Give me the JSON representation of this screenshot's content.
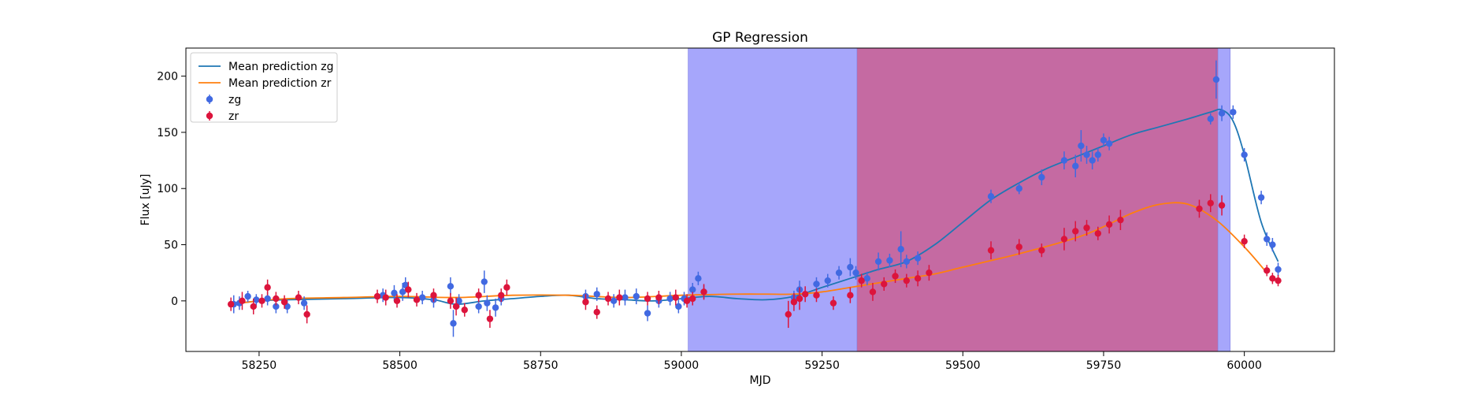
{
  "chart_data": {
    "type": "scatter",
    "title": "GP Regression",
    "xlabel": "MJD",
    "ylabel": "Flux [uJy]",
    "xlim": [
      58120,
      60160
    ],
    "ylim": [
      -45,
      225
    ],
    "xticks": [
      58250,
      58500,
      58750,
      59000,
      59250,
      59500,
      59750,
      60000
    ],
    "yticks": [
      0,
      50,
      100,
      150,
      200
    ],
    "grid": false,
    "legend_position": "top-left",
    "shaded_regions": [
      {
        "x0": 59012,
        "x1": 59975,
        "color": "#a6a6fb"
      },
      {
        "x0": 59312,
        "x1": 59953,
        "color": "#c56aa2"
      }
    ],
    "lines": [
      {
        "name": "Mean prediction zg",
        "color": "#1f77b4",
        "x": [
          58200,
          58250,
          58300,
          58400,
          58500,
          58560,
          58600,
          58650,
          58700,
          58750,
          58800,
          58850,
          58900,
          58950,
          59000,
          59050,
          59100,
          59150,
          59200,
          59250,
          59300,
          59350,
          59400,
          59450,
          59500,
          59550,
          59600,
          59650,
          59700,
          59750,
          59800,
          59850,
          59900,
          59940,
          59960,
          59980,
          60000,
          60030,
          60060
        ],
        "y": [
          -3,
          0,
          1,
          2,
          3,
          1,
          -3,
          0,
          2,
          4,
          5,
          2,
          1,
          0,
          2,
          4,
          2,
          1,
          4,
          12,
          20,
          28,
          35,
          50,
          70,
          90,
          105,
          118,
          128,
          138,
          148,
          155,
          162,
          168,
          170,
          160,
          130,
          70,
          35
        ]
      },
      {
        "name": "Mean prediction zr",
        "color": "#ff7f0e",
        "x": [
          58200,
          58250,
          58300,
          58400,
          58500,
          58600,
          58700,
          58800,
          58900,
          59000,
          59100,
          59150,
          59200,
          59250,
          59300,
          59350,
          59400,
          59450,
          59500,
          59600,
          59700,
          59750,
          59800,
          59850,
          59900,
          59950,
          60000,
          60040
        ],
        "y": [
          -3,
          0,
          2,
          3,
          4,
          3,
          5,
          5,
          3,
          5,
          6,
          6,
          6,
          8,
          12,
          16,
          20,
          24,
          30,
          42,
          56,
          66,
          78,
          86,
          86,
          72,
          48,
          25
        ]
      }
    ],
    "series": [
      {
        "name": "zg",
        "color": "#4169e1",
        "x": [
          58205,
          58215,
          58230,
          58245,
          58265,
          58280,
          58300,
          58330,
          58470,
          58490,
          58505,
          58510,
          58540,
          58560,
          58590,
          58595,
          58605,
          58640,
          58650,
          58655,
          58670,
          58680,
          58830,
          58850,
          58880,
          58900,
          58920,
          58940,
          58960,
          58980,
          58995,
          59005,
          59020,
          59030,
          59040,
          59200,
          59210,
          59240,
          59260,
          59280,
          59300,
          59310,
          59330,
          59350,
          59370,
          59390,
          59400,
          59420,
          59550,
          59600,
          59640,
          59680,
          59700,
          59710,
          59720,
          59730,
          59740,
          59750,
          59760,
          59940,
          59950,
          59960,
          59980,
          60000,
          60030,
          60040,
          60050,
          60060
        ],
        "y": [
          -3,
          -2,
          4,
          1,
          2,
          -5,
          -5,
          -2,
          5,
          7,
          8,
          14,
          3,
          1,
          13,
          -20,
          0,
          -5,
          17,
          -2,
          -6,
          2,
          4,
          6,
          0,
          3,
          4,
          -11,
          0,
          2,
          -5,
          2,
          10,
          20,
          8,
          3,
          10,
          15,
          18,
          25,
          30,
          25,
          20,
          35,
          36,
          46,
          35,
          38,
          93,
          100,
          110,
          125,
          120,
          138,
          130,
          125,
          130,
          143,
          140,
          162,
          197,
          167,
          168,
          130,
          92,
          55,
          50,
          28
        ],
        "err": [
          8,
          6,
          5,
          5,
          6,
          6,
          6,
          6,
          6,
          7,
          8,
          7,
          6,
          7,
          8,
          12,
          6,
          6,
          10,
          7,
          8,
          6,
          6,
          6,
          6,
          7,
          7,
          7,
          6,
          6,
          6,
          6,
          6,
          6,
          6,
          6,
          8,
          6,
          6,
          6,
          8,
          6,
          6,
          8,
          6,
          16,
          6,
          6,
          6,
          5,
          7,
          8,
          10,
          14,
          8,
          8,
          6,
          6,
          6,
          5,
          17,
          7,
          6,
          6,
          6,
          6,
          6,
          6
        ]
      },
      {
        "name": "zr",
        "color": "#dc143c",
        "x": [
          58200,
          58220,
          58240,
          58255,
          58265,
          58280,
          58295,
          58320,
          58335,
          58460,
          58475,
          58495,
          58515,
          58530,
          58560,
          58590,
          58600,
          58615,
          58640,
          58660,
          58680,
          58690,
          58830,
          58850,
          58870,
          58890,
          58940,
          58960,
          58990,
          59010,
          59020,
          59040,
          59190,
          59200,
          59210,
          59220,
          59240,
          59270,
          59300,
          59320,
          59340,
          59360,
          59380,
          59400,
          59420,
          59440,
          59550,
          59600,
          59640,
          59680,
          59700,
          59720,
          59740,
          59760,
          59780,
          59920,
          59940,
          59960,
          60000,
          60040,
          60050,
          60060
        ],
        "y": [
          -3,
          0,
          -5,
          0,
          12,
          2,
          -1,
          3,
          -12,
          4,
          3,
          0,
          10,
          1,
          5,
          0,
          -5,
          -8,
          5,
          -16,
          5,
          12,
          -1,
          -10,
          2,
          3,
          2,
          3,
          3,
          0,
          2,
          8,
          -12,
          -1,
          2,
          6,
          5,
          -2,
          5,
          18,
          8,
          15,
          22,
          18,
          20,
          25,
          45,
          48,
          45,
          55,
          62,
          65,
          60,
          68,
          72,
          82,
          87,
          85,
          53,
          27,
          20,
          18
        ],
        "err": [
          6,
          8,
          7,
          6,
          7,
          6,
          6,
          6,
          8,
          6,
          7,
          6,
          7,
          6,
          6,
          7,
          8,
          6,
          6,
          8,
          6,
          7,
          7,
          6,
          6,
          7,
          6,
          6,
          7,
          6,
          6,
          7,
          12,
          8,
          10,
          7,
          6,
          6,
          7,
          6,
          8,
          6,
          6,
          6,
          7,
          7,
          8,
          7,
          6,
          10,
          9,
          7,
          6,
          8,
          9,
          8,
          8,
          9,
          6,
          5,
          5,
          5
        ]
      }
    ]
  }
}
